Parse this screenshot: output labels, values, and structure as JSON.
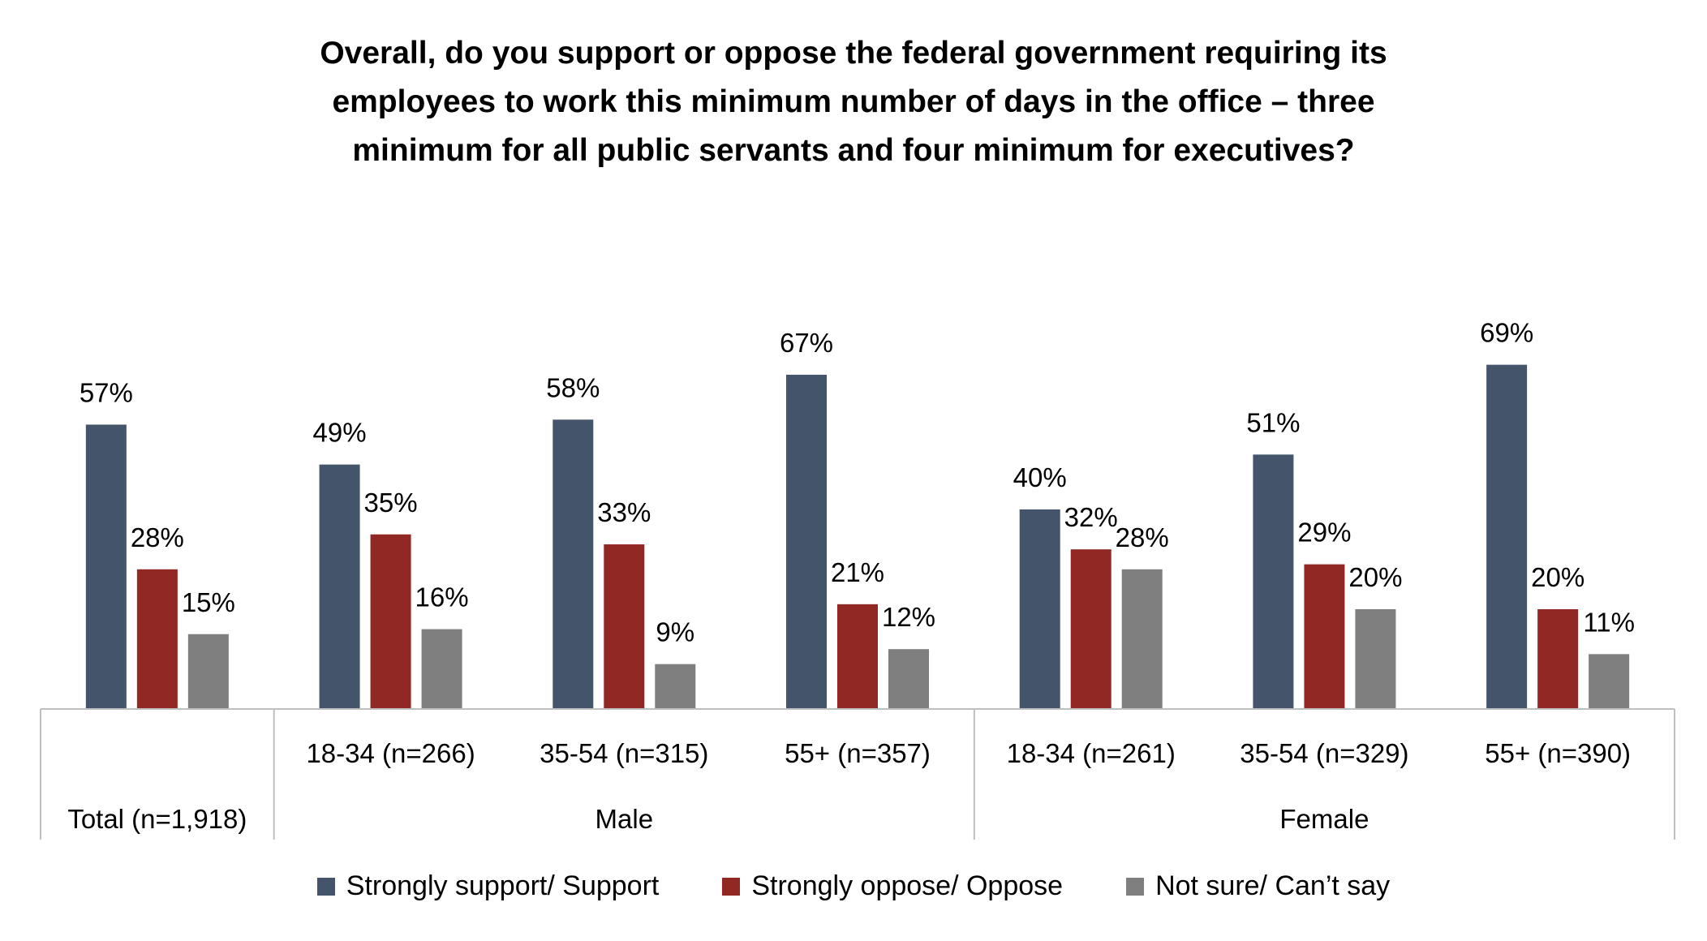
{
  "chart_data": {
    "type": "bar",
    "title_lines": [
      "Overall, do you support or oppose the federal government requiring its",
      "employees to work this minimum number of days in the office – three",
      "minimum for all public servants and four minimum for executives?"
    ],
    "groups": [
      {
        "label": "Total (n=1,918)",
        "categories": [
          ""
        ]
      },
      {
        "label": "Male",
        "categories": [
          "18-34 (n=266)",
          "35-54 (n=315)",
          "55+ (n=357)"
        ]
      },
      {
        "label": "Female",
        "categories": [
          "18-34 (n=261)",
          "35-54 (n=329)",
          "55+ (n=390)"
        ]
      }
    ],
    "series": [
      {
        "name": "Strongly support/ Support",
        "color": "#44546A",
        "values": [
          57,
          49,
          58,
          67,
          40,
          51,
          69
        ]
      },
      {
        "name": "Strongly oppose/ Oppose",
        "color": "#922824",
        "values": [
          28,
          35,
          33,
          21,
          32,
          29,
          20
        ]
      },
      {
        "name": "Not sure/ Can’t say",
        "color": "#7F7F7F",
        "values": [
          15,
          16,
          9,
          12,
          28,
          20,
          11
        ]
      }
    ],
    "value_suffix": "%",
    "ylim": [
      0,
      80
    ],
    "legend_position": "bottom"
  }
}
